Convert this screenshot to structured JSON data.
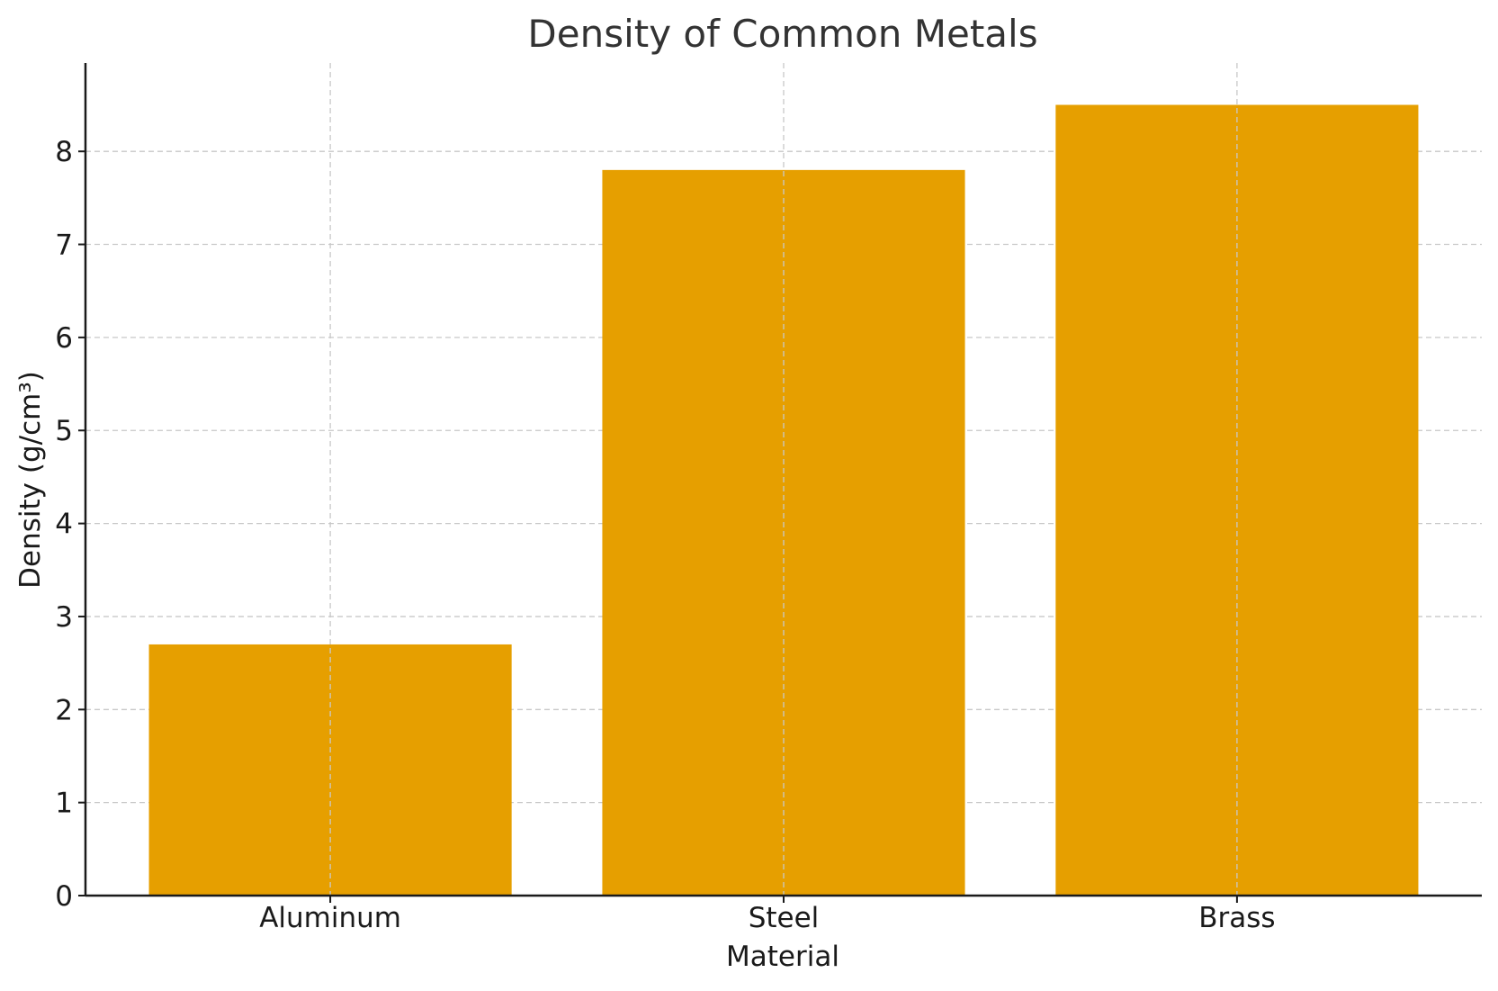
{
  "chart_data": {
    "type": "bar",
    "title": "Density of Common Metals",
    "xlabel": "Material",
    "ylabel": "Density (g/cm³)",
    "categories": [
      "Aluminum",
      "Steel",
      "Brass"
    ],
    "values": [
      2.7,
      7.8,
      8.5
    ],
    "ylim": [
      0,
      8.95
    ],
    "yticks": [
      "0",
      "1",
      "2",
      "3",
      "4",
      "5",
      "6",
      "7",
      "8"
    ],
    "grid": true,
    "bar_color": "#E69F00"
  }
}
